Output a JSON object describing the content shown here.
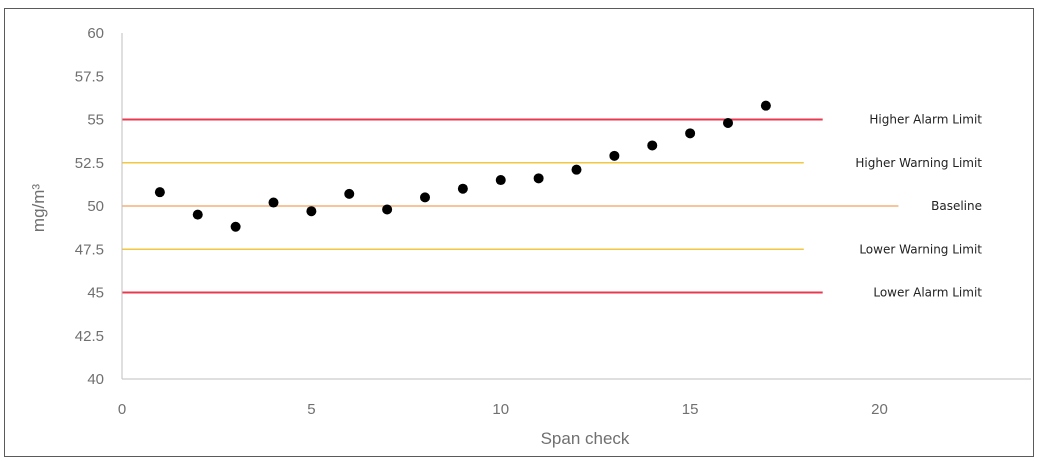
{
  "chart_data": {
    "type": "scatter",
    "title": "",
    "xlabel": "Span check",
    "ylabel": "mg/m³",
    "xlim": [
      0,
      24
    ],
    "ylim": [
      40,
      60
    ],
    "x_ticks": [
      0,
      5,
      10,
      15,
      20
    ],
    "x_tick_labels": [
      "0",
      "5",
      "10",
      "15",
      "20"
    ],
    "y_ticks": [
      40,
      42.5,
      45,
      47.5,
      50,
      52.5,
      55,
      57.5,
      60
    ],
    "y_tick_labels": [
      "40",
      "42.5",
      "45",
      "47.5",
      "50",
      "52.5",
      "55",
      "57.5",
      "60"
    ],
    "grid": false,
    "series": [
      {
        "marker_color": "#000000",
        "points": [
          {
            "x": 1,
            "y": 50.8
          },
          {
            "x": 2,
            "y": 49.5
          },
          {
            "x": 3,
            "y": 48.8
          },
          {
            "x": 4,
            "y": 50.2
          },
          {
            "x": 5,
            "y": 49.7
          },
          {
            "x": 6,
            "y": 50.7
          },
          {
            "x": 7,
            "y": 49.8
          },
          {
            "x": 8,
            "y": 50.5
          },
          {
            "x": 9,
            "y": 51.0
          },
          {
            "x": 10,
            "y": 51.5
          },
          {
            "x": 11,
            "y": 51.6
          },
          {
            "x": 12,
            "y": 52.1
          },
          {
            "x": 13,
            "y": 52.9
          },
          {
            "x": 14,
            "y": 53.5
          },
          {
            "x": 15,
            "y": 54.2
          },
          {
            "x": 16,
            "y": 54.8
          },
          {
            "x": 17,
            "y": 55.8
          }
        ]
      }
    ],
    "reference_lines": [
      {
        "id": "higher-alarm",
        "label": "Higher Alarm Limit",
        "y": 55,
        "x_end": 18.5,
        "color": "#e83a4f"
      },
      {
        "id": "higher-warning",
        "label": "Higher Warning Limit",
        "y": 52.5,
        "x_end": 18.0,
        "color": "#f2c744"
      },
      {
        "id": "baseline",
        "label": "Baseline",
        "y": 50,
        "x_end": 20.5,
        "color": "#f6b27a"
      },
      {
        "id": "lower-warning",
        "label": "Lower Warning Limit",
        "y": 47.5,
        "x_end": 18.0,
        "color": "#f2c744"
      },
      {
        "id": "lower-alarm",
        "label": "Lower Alarm Limit",
        "y": 45,
        "x_end": 18.5,
        "color": "#e83a4f"
      }
    ],
    "axis_color": "#bfbfbf"
  }
}
